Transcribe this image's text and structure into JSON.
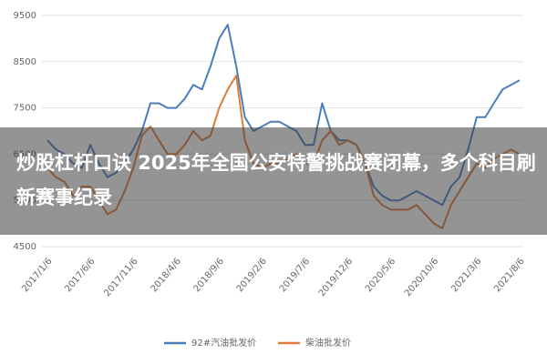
{
  "chart_data": {
    "type": "line",
    "categories": [
      "2017/1/6",
      null,
      null,
      null,
      null,
      "2017/6/6",
      null,
      null,
      null,
      null,
      "2017/11/6",
      null,
      null,
      null,
      null,
      "2018/4/6",
      null,
      null,
      null,
      null,
      "2018/9/6",
      null,
      null,
      null,
      null,
      "2019/2/6",
      null,
      null,
      null,
      null,
      "2019/7/6",
      null,
      null,
      null,
      null,
      "2019/12/6",
      null,
      null,
      null,
      null,
      "2020/5/6",
      null,
      null,
      null,
      null,
      "2020/10/6",
      null,
      null,
      null,
      null,
      "2021/3/6",
      null,
      null,
      null,
      null,
      "2021/8/6"
    ],
    "series": [
      {
        "name": "92#汽油批发价",
        "color": "#4a7ebb",
        "values": [
          6800,
          6600,
          6500,
          6300,
          6200,
          6700,
          6300,
          6000,
          6100,
          6300,
          6600,
          7000,
          7600,
          7600,
          7500,
          7500,
          7700,
          8000,
          7900,
          8400,
          9000,
          9300,
          8400,
          7300,
          7000,
          7100,
          7200,
          7200,
          7100,
          7000,
          6700,
          6700,
          7600,
          7000,
          6800,
          6800,
          6700,
          6300,
          5800,
          5600,
          5500,
          5500,
          5600,
          5700,
          5600,
          5500,
          5400,
          5800,
          6000,
          6600,
          7300,
          7300,
          7600,
          7900,
          8000,
          8100
        ]
      },
      {
        "name": "柴油批发价",
        "color": "#e07b39",
        "values": [
          6200,
          6000,
          5900,
          5600,
          5800,
          5800,
          5500,
          5200,
          5300,
          5700,
          6200,
          6900,
          7100,
          6800,
          6500,
          6500,
          6700,
          7000,
          6800,
          6900,
          7500,
          7900,
          8200,
          6800,
          6300,
          6200,
          6300,
          6300,
          6400,
          6500,
          6300,
          6300,
          6800,
          7000,
          6700,
          6800,
          6700,
          6300,
          5600,
          5400,
          5300,
          5300,
          5300,
          5400,
          5200,
          5000,
          4900,
          5400,
          5700,
          6000,
          6300,
          6200,
          6400,
          6500,
          6600,
          6500
        ]
      }
    ],
    "ylim": [
      4500,
      9500
    ],
    "yticks": [
      4500,
      5500,
      6500,
      7500,
      8500,
      9500
    ],
    "grid": true,
    "legend": "bottom"
  },
  "caption": "炒股杠杆口诀 2025年全国公安特警挑战赛闭幕，多个科目刷新赛事纪录"
}
